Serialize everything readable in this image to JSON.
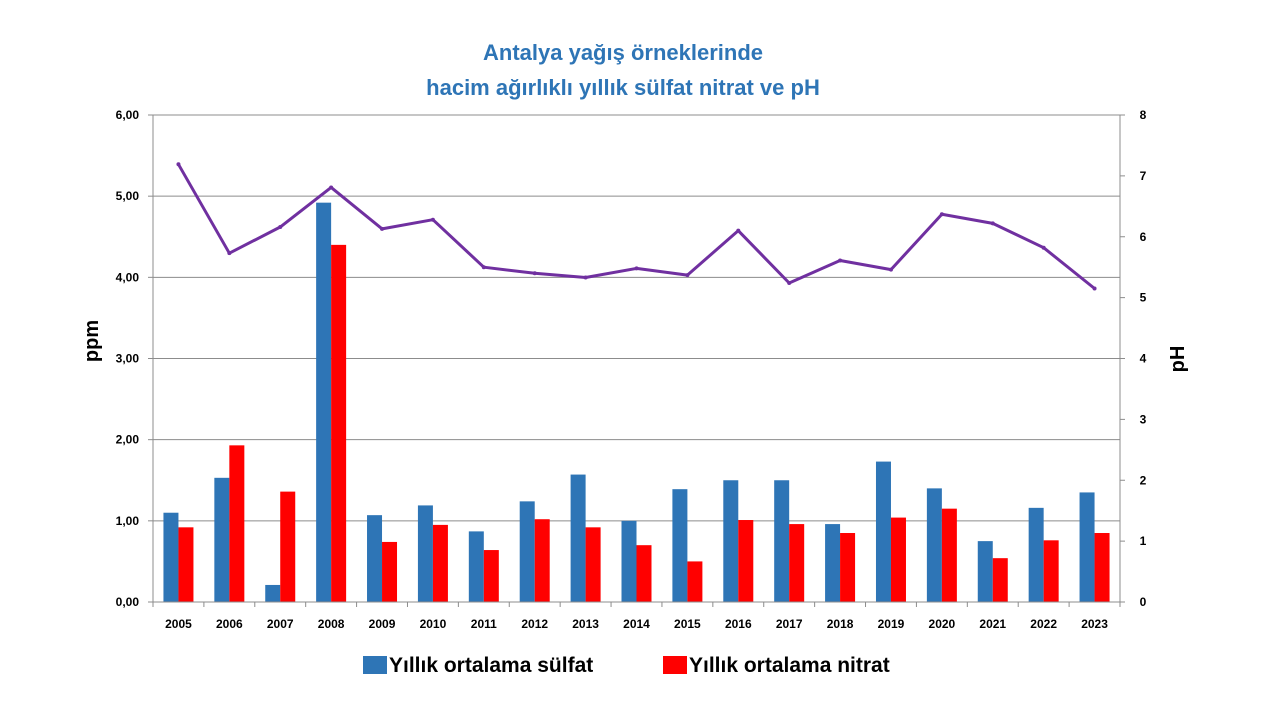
{
  "chart_data": {
    "type": "bar",
    "title": [
      "Antalya yağış örneklerinde",
      "hacim ağırlıklı yıllık sülfat nitrat ve pH"
    ],
    "ylabel": "ppm",
    "y2label": "pH",
    "categories": [
      "2005",
      "2006",
      "2007",
      "2008",
      "2009",
      "2010",
      "2011",
      "2012",
      "2013",
      "2014",
      "2015",
      "2016",
      "2017",
      "2018",
      "2019",
      "2020",
      "2021",
      "2022",
      "2023"
    ],
    "ylim": [
      0,
      6
    ],
    "yticks": [
      "0,00",
      "1,00",
      "2,00",
      "3,00",
      "4,00",
      "5,00",
      "6,00"
    ],
    "y2lim": [
      0,
      8
    ],
    "y2ticks": [
      "0",
      "1",
      "2",
      "3",
      "4",
      "5",
      "6",
      "7",
      "8"
    ],
    "grid": true,
    "legend_position": "bottom",
    "series": [
      {
        "name": "Yıllık ortalama sülfat",
        "kind": "bar",
        "axis": "left",
        "color": "#2e75b6",
        "values": [
          1.1,
          1.53,
          0.21,
          4.92,
          1.07,
          1.19,
          0.87,
          1.24,
          1.57,
          1.0,
          1.39,
          1.5,
          1.5,
          0.96,
          1.73,
          1.4,
          0.75,
          1.16,
          1.35
        ]
      },
      {
        "name": "Yıllık ortalama nitrat",
        "kind": "bar",
        "axis": "left",
        "color": "#ff0000",
        "values": [
          0.92,
          1.93,
          1.36,
          4.4,
          0.74,
          0.95,
          0.64,
          1.02,
          0.92,
          0.7,
          0.5,
          1.01,
          0.96,
          0.85,
          1.04,
          1.15,
          0.54,
          0.76,
          0.85
        ]
      },
      {
        "kind": "line",
        "axis": "right",
        "color": "#7030a0",
        "values": [
          7.19,
          5.73,
          6.16,
          6.81,
          6.13,
          6.28,
          5.5,
          5.4,
          5.33,
          5.48,
          5.37,
          6.1,
          5.24,
          5.61,
          5.46,
          6.37,
          6.22,
          5.82,
          5.15
        ]
      }
    ]
  }
}
